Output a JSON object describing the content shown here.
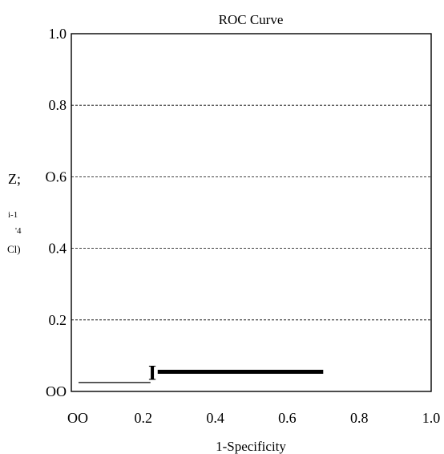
{
  "chart_data": {
    "type": "line",
    "title": "ROC Curve",
    "xlabel": "1-Specificity",
    "ylabel_fragments": [
      "Z;",
      "i-1",
      "'4",
      "Cl)"
    ],
    "xlim": [
      0,
      1
    ],
    "ylim": [
      0,
      1
    ],
    "x_ticks": [
      {
        "value": 0.0,
        "label": "OO"
      },
      {
        "value": 0.2,
        "label": "0.2"
      },
      {
        "value": 0.4,
        "label": "0.4"
      },
      {
        "value": 0.6,
        "label": "0.6"
      },
      {
        "value": 0.8,
        "label": "0.8"
      },
      {
        "value": 1.0,
        "label": "1.0"
      }
    ],
    "y_ticks": [
      {
        "value": 0.0,
        "label": "OO"
      },
      {
        "value": 0.2,
        "label": "0.2"
      },
      {
        "value": 0.4,
        "label": "0.4"
      },
      {
        "value": 0.6,
        "label": "O.6"
      },
      {
        "value": 0.8,
        "label": "0.8"
      },
      {
        "value": 1.0,
        "label": "1.0"
      }
    ],
    "grid": "horizontal dashed",
    "series": [
      {
        "color": "#000000",
        "segments": [
          {
            "x": [
              0.02,
              0.22
            ],
            "y": [
              0.025,
              0.025
            ],
            "weight": "thin"
          },
          {
            "x": [
              0.24,
              0.7
            ],
            "y": [
              0.055,
              0.055
            ],
            "weight": "thick"
          }
        ]
      }
    ],
    "annotations": [
      {
        "text": "I",
        "x": 0.225,
        "y": 0.055
      }
    ]
  }
}
